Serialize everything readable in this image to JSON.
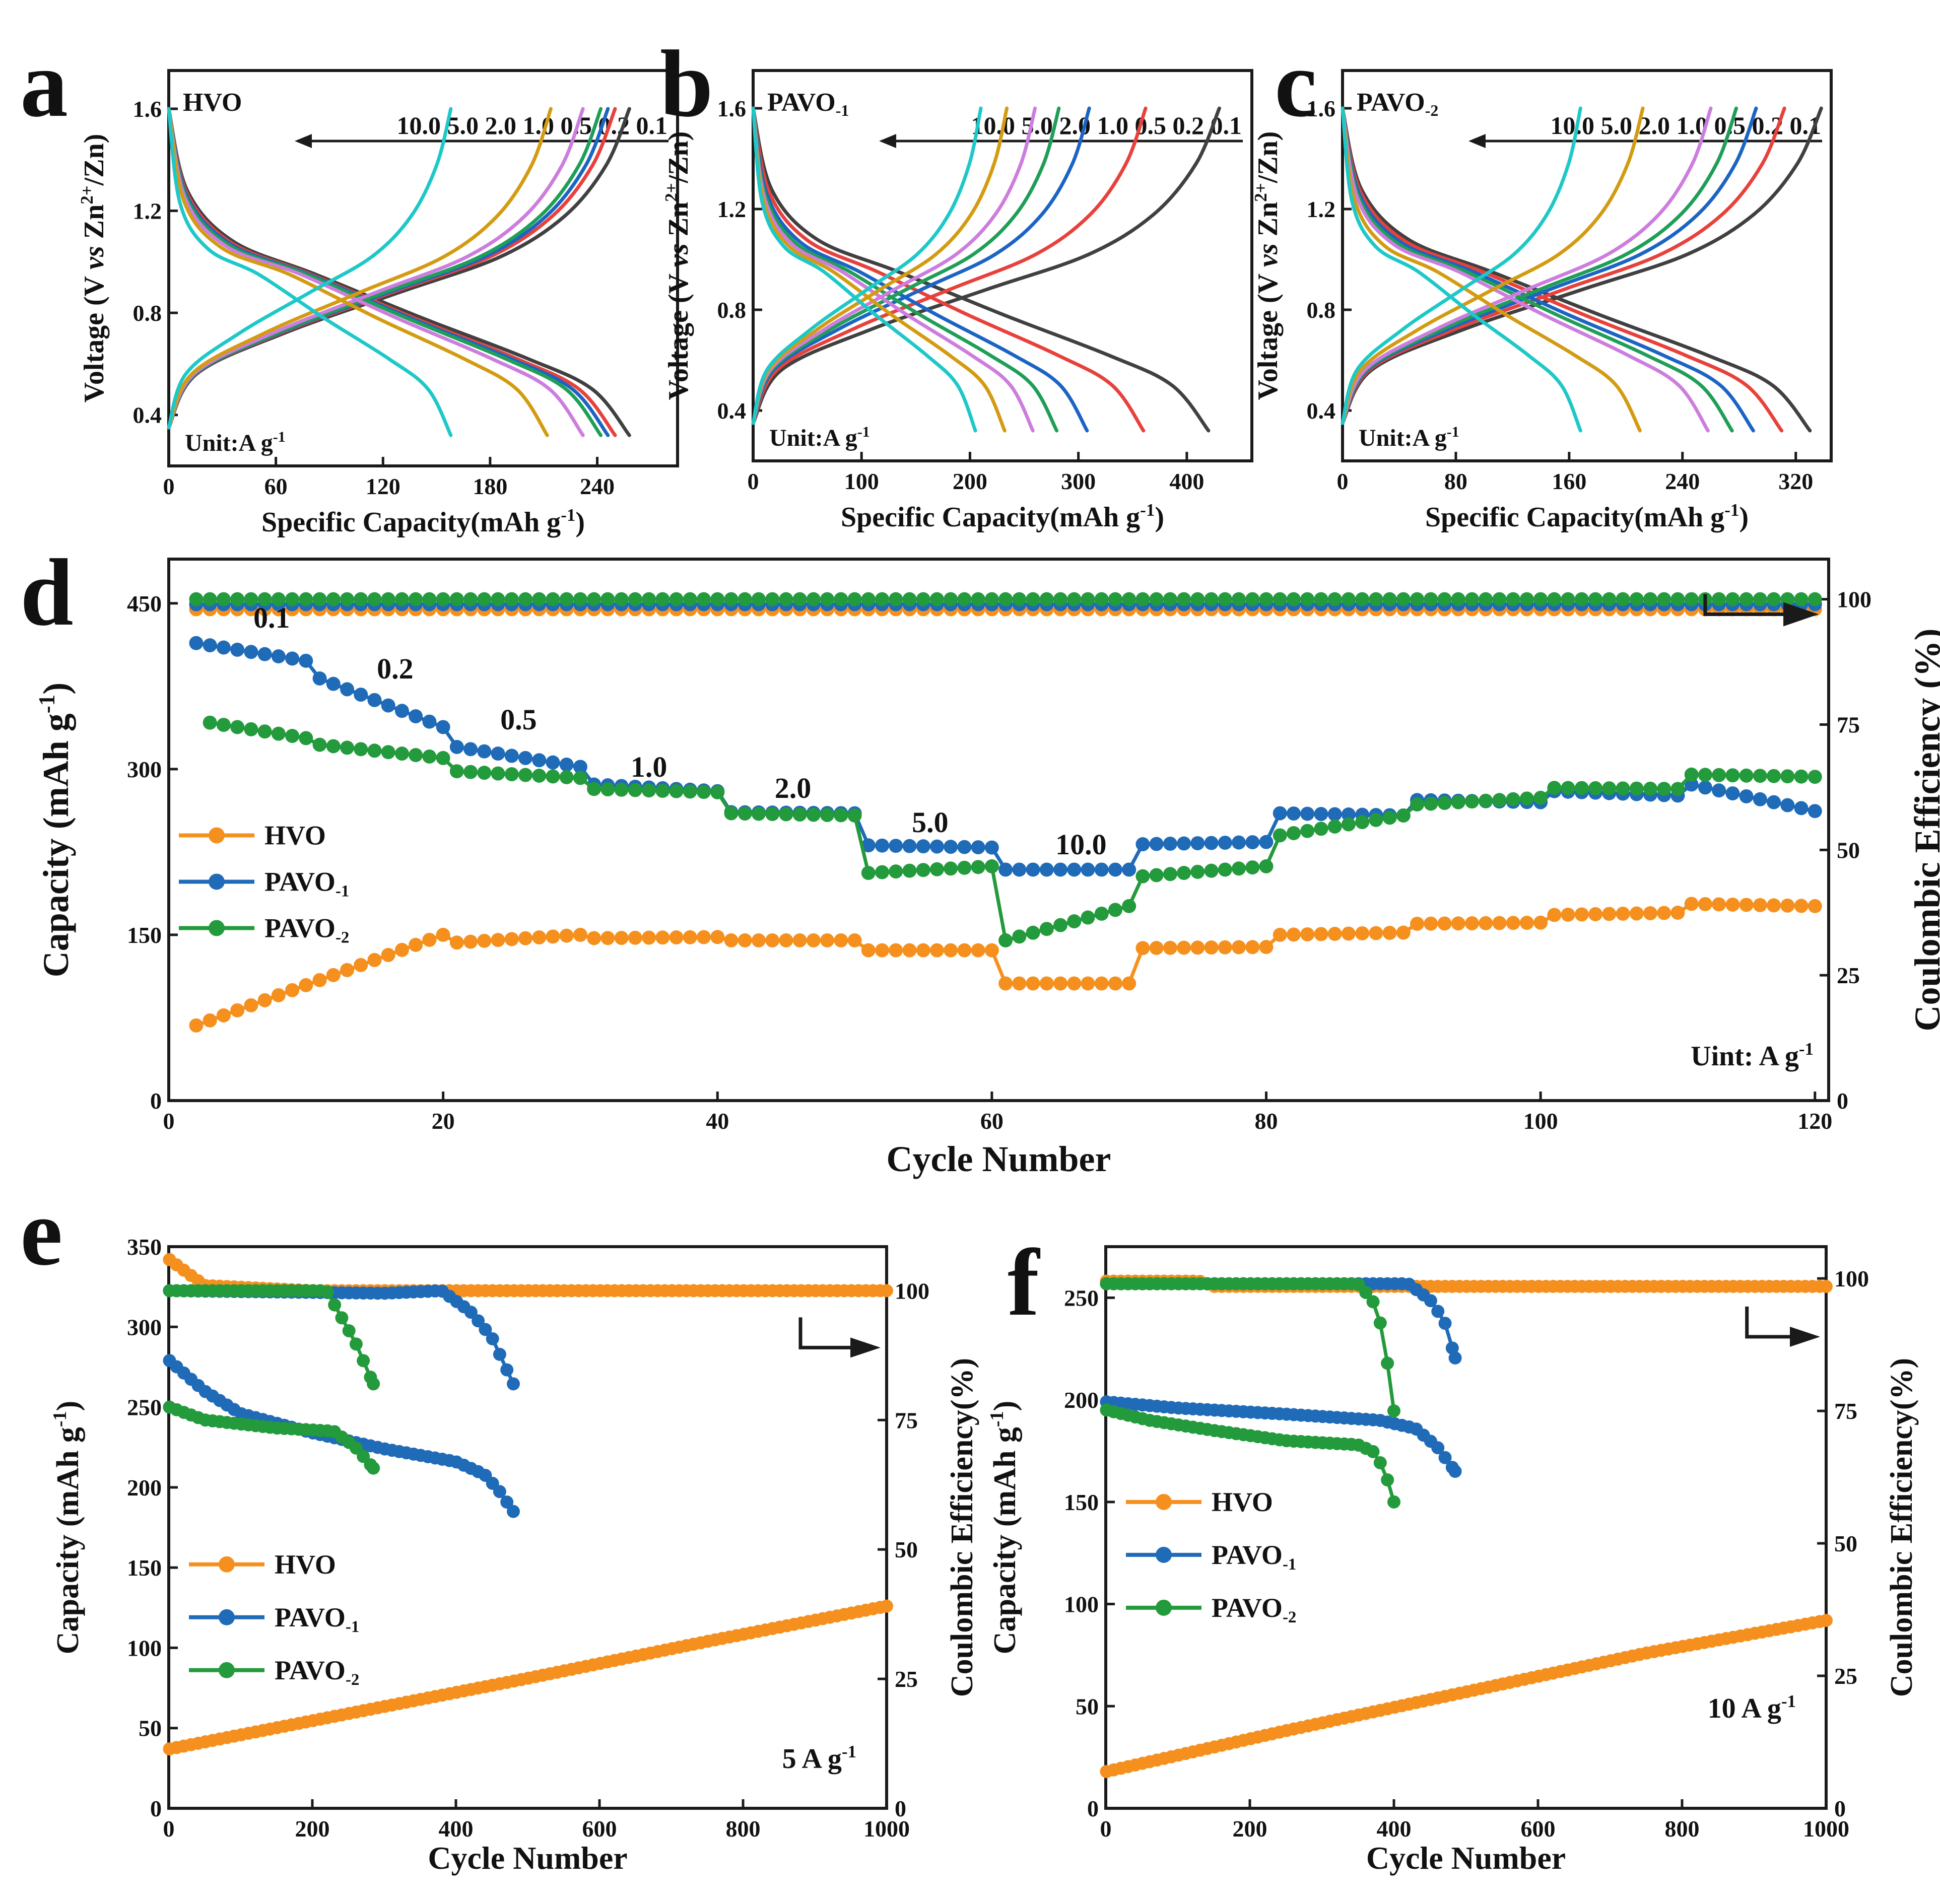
{
  "figure": {
    "colors": {
      "axis": "#1a1a1a",
      "HVO": "#f5901e",
      "PAVO_1": "#1f6bb8",
      "PAVO_2": "#239a3b",
      "rate_0.1": "#404040",
      "rate_0.2": "#e8413c",
      "rate_0.5": "#1c64c4",
      "rate_1.0": "#1f9e57",
      "rate_2.0": "#cc7ddd",
      "rate_5.0": "#d39b12",
      "rate_10.0": "#1ec8c8"
    }
  },
  "chart_data": [
    {
      "panel": "a",
      "type": "line",
      "title": "HVO",
      "xlabel": "Specific Capacity(mAh g-1)",
      "ylabel": "Voltage (V vs Zn2+/Zn)",
      "xlim": [
        0,
        285
      ],
      "ylim": [
        0.2,
        1.75
      ],
      "xticks": [
        "0",
        "60",
        "120",
        "180",
        "240"
      ],
      "xtick_values": [
        0,
        60,
        120,
        180,
        240
      ],
      "yticks": [
        "0.4",
        "0.8",
        "1.2",
        "1.6"
      ],
      "ytick_values": [
        0.4,
        0.8,
        1.2,
        1.6
      ],
      "arrow_label": "10.0 5.0 2.0 1.0 0.5 0.2 0.1",
      "unit_note": "Unit:A g-1",
      "series": [
        {
          "name": "0.1",
          "discharge_capacity": 258,
          "charge_capacity": 258
        },
        {
          "name": "0.2",
          "discharge_capacity": 250,
          "charge_capacity": 250
        },
        {
          "name": "0.5",
          "discharge_capacity": 246,
          "charge_capacity": 246
        },
        {
          "name": "1.0",
          "discharge_capacity": 242,
          "charge_capacity": 242
        },
        {
          "name": "2.0",
          "discharge_capacity": 232,
          "charge_capacity": 232
        },
        {
          "name": "5.0",
          "discharge_capacity": 212,
          "charge_capacity": 214
        },
        {
          "name": "10.0",
          "discharge_capacity": 158,
          "charge_capacity": 158
        }
      ]
    },
    {
      "panel": "b",
      "type": "line",
      "title": "PAVO-1",
      "xlabel": "Specific Capacity(mAh g-1)",
      "ylabel": "Voltage (V vs Zn2+/Zn)",
      "xlim": [
        0,
        460
      ],
      "ylim": [
        0.2,
        1.75
      ],
      "xticks": [
        "0",
        "100",
        "200",
        "300",
        "400"
      ],
      "xtick_values": [
        0,
        100,
        200,
        300,
        400
      ],
      "yticks": [
        "0.4",
        "0.8",
        "1.2",
        "1.6"
      ],
      "ytick_values": [
        0.4,
        0.8,
        1.2,
        1.6
      ],
      "arrow_label": "10.0 5.0 2.0 1.0 0.5 0.2 0.1",
      "unit_note": "Unit:A g-1",
      "series": [
        {
          "name": "0.1",
          "discharge_capacity": 420,
          "charge_capacity": 430
        },
        {
          "name": "0.2",
          "discharge_capacity": 360,
          "charge_capacity": 362
        },
        {
          "name": "0.5",
          "discharge_capacity": 308,
          "charge_capacity": 310
        },
        {
          "name": "1.0",
          "discharge_capacity": 280,
          "charge_capacity": 282
        },
        {
          "name": "2.0",
          "discharge_capacity": 258,
          "charge_capacity": 260
        },
        {
          "name": "5.0",
          "discharge_capacity": 232,
          "charge_capacity": 234
        },
        {
          "name": "10.0",
          "discharge_capacity": 205,
          "charge_capacity": 210
        }
      ]
    },
    {
      "panel": "c",
      "type": "line",
      "title": "PAVO-2",
      "xlabel": "Specific Capacity(mAh g-1)",
      "ylabel": "Voltage (V vs Zn2+/Zn)",
      "xlim": [
        0,
        345
      ],
      "ylim": [
        0.2,
        1.75
      ],
      "xticks": [
        "0",
        "80",
        "160",
        "240",
        "320"
      ],
      "xtick_values": [
        0,
        80,
        160,
        240,
        320
      ],
      "yticks": [
        "0.4",
        "0.8",
        "1.2",
        "1.6"
      ],
      "ytick_values": [
        0.4,
        0.8,
        1.2,
        1.6
      ],
      "arrow_label": "10.0 5.0 2.0 1.0 0.5 0.2 0.1",
      "unit_note": "Unit:A g-1",
      "series": [
        {
          "name": "0.1",
          "discharge_capacity": 330,
          "charge_capacity": 338
        },
        {
          "name": "0.2",
          "discharge_capacity": 310,
          "charge_capacity": 312
        },
        {
          "name": "0.5",
          "discharge_capacity": 290,
          "charge_capacity": 292
        },
        {
          "name": "1.0",
          "discharge_capacity": 275,
          "charge_capacity": 278
        },
        {
          "name": "2.0",
          "discharge_capacity": 258,
          "charge_capacity": 260
        },
        {
          "name": "5.0",
          "discharge_capacity": 210,
          "charge_capacity": 212
        },
        {
          "name": "10.0",
          "discharge_capacity": 168,
          "charge_capacity": 168
        }
      ]
    },
    {
      "panel": "d",
      "type": "scatter",
      "xlabel": "Cycle Number",
      "ylabel": "Capacity (mAh g-1)",
      "y2label": "Coulombic Efficiency (%)",
      "xlim": [
        0,
        121
      ],
      "ylim": [
        0,
        490
      ],
      "y2lim": [
        0,
        108
      ],
      "xticks": [
        "0",
        "20",
        "40",
        "60",
        "80",
        "100",
        "120"
      ],
      "xtick_values": [
        0,
        20,
        40,
        60,
        80,
        100,
        120
      ],
      "yticks": [
        "0",
        "150",
        "300",
        "450"
      ],
      "ytick_values": [
        0,
        150,
        300,
        450
      ],
      "y2ticks": [
        "0",
        "25",
        "50",
        "75",
        "100"
      ],
      "y2tick_values": [
        0,
        25,
        50,
        75,
        100
      ],
      "legend": [
        "HVO",
        "PAVO-1",
        "PAVO-2"
      ],
      "unit_note": "Uint: A g-1",
      "rate_labels": [
        {
          "text": "0.1",
          "x": 7.5,
          "y": 428
        },
        {
          "text": "0.2",
          "x": 16.5,
          "y": 382
        },
        {
          "text": "0.5",
          "x": 25.5,
          "y": 336
        },
        {
          "text": "1.0",
          "x": 35,
          "y": 293
        },
        {
          "text": "2.0",
          "x": 45.5,
          "y": 274
        },
        {
          "text": "5.0",
          "x": 55.5,
          "y": 243
        },
        {
          "text": "10.0",
          "x": 66.5,
          "y": 223
        }
      ],
      "series": [
        {
          "name": "HVO",
          "segments": [
            {
              "from": 2,
              "to": 20,
              "start": 68,
              "end": 150
            },
            {
              "from": 21,
              "to": 30,
              "start": 143,
              "end": 150
            },
            {
              "from": 31,
              "to": 40,
              "start": 147,
              "end": 148
            },
            {
              "from": 41,
              "to": 50,
              "start": 145,
              "end": 145
            },
            {
              "from": 51,
              "to": 60,
              "start": 136,
              "end": 136
            },
            {
              "from": 61,
              "to": 70,
              "start": 106,
              "end": 106
            },
            {
              "from": 71,
              "to": 80,
              "start": 138,
              "end": 139
            },
            {
              "from": 81,
              "to": 90,
              "start": 150,
              "end": 152
            },
            {
              "from": 91,
              "to": 100,
              "start": 160,
              "end": 161
            },
            {
              "from": 101,
              "to": 110,
              "start": 168,
              "end": 170
            },
            {
              "from": 111,
              "to": 120,
              "start": 178,
              "end": 176
            }
          ],
          "ce": 98
        },
        {
          "name": "PAVO-1",
          "segments": [
            {
              "from": 2,
              "to": 10,
              "start": 414,
              "end": 398
            },
            {
              "from": 11,
              "to": 20,
              "start": 382,
              "end": 338
            },
            {
              "from": 21,
              "to": 30,
              "start": 320,
              "end": 302
            },
            {
              "from": 31,
              "to": 40,
              "start": 286,
              "end": 280
            },
            {
              "from": 41,
              "to": 50,
              "start": 261,
              "end": 260
            },
            {
              "from": 51,
              "to": 60,
              "start": 231,
              "end": 229
            },
            {
              "from": 61,
              "to": 70,
              "start": 209,
              "end": 209
            },
            {
              "from": 71,
              "to": 80,
              "start": 232,
              "end": 234
            },
            {
              "from": 81,
              "to": 90,
              "start": 260,
              "end": 258
            },
            {
              "from": 91,
              "to": 100,
              "start": 272,
              "end": 270
            },
            {
              "from": 101,
              "to": 110,
              "start": 280,
              "end": 276
            },
            {
              "from": 111,
              "to": 120,
              "start": 286,
              "end": 262
            }
          ],
          "ce": 99
        },
        {
          "name": "PAVO-2",
          "segments": [
            {
              "from": 3,
              "to": 10,
              "start": 342,
              "end": 328
            },
            {
              "from": 11,
              "to": 20,
              "start": 322,
              "end": 310
            },
            {
              "from": 21,
              "to": 30,
              "start": 298,
              "end": 292
            },
            {
              "from": 31,
              "to": 40,
              "start": 282,
              "end": 279
            },
            {
              "from": 41,
              "to": 50,
              "start": 260,
              "end": 258
            },
            {
              "from": 51,
              "to": 60,
              "start": 206,
              "end": 212
            },
            {
              "from": 61,
              "to": 70,
              "start": 145,
              "end": 176
            },
            {
              "from": 71,
              "to": 80,
              "start": 203,
              "end": 212
            },
            {
              "from": 81,
              "to": 90,
              "start": 240,
              "end": 258
            },
            {
              "from": 91,
              "to": 100,
              "start": 268,
              "end": 274
            },
            {
              "from": 101,
              "to": 110,
              "start": 283,
              "end": 282
            },
            {
              "from": 111,
              "to": 120,
              "start": 295,
              "end": 293
            }
          ],
          "ce": 100
        }
      ]
    },
    {
      "panel": "e",
      "type": "scatter",
      "xlabel": "Cycle Number",
      "ylabel": "Capacity (mAh g-1)",
      "y2label": "Coulombic Efficiency(%)",
      "xlim": [
        0,
        1000
      ],
      "ylim": [
        0,
        350
      ],
      "y2lim": [
        0,
        108.5
      ],
      "xticks": [
        "0",
        "200",
        "400",
        "600",
        "800",
        "1000"
      ],
      "xtick_values": [
        0,
        200,
        400,
        600,
        800,
        1000
      ],
      "yticks": [
        "0",
        "50",
        "100",
        "150",
        "200",
        "250",
        "300",
        "350"
      ],
      "ytick_values": [
        0,
        50,
        100,
        150,
        200,
        250,
        300,
        350
      ],
      "y2ticks": [
        "0",
        "25",
        "50",
        "75",
        "100"
      ],
      "y2tick_values": [
        0,
        25,
        50,
        75,
        100
      ],
      "legend": [
        "HVO",
        "PAVO-1",
        "PAVO-2"
      ],
      "unit_note": "5 A g-1",
      "series": [
        {
          "name": "HVO",
          "capacity_points": [
            [
              1,
              37
            ],
            [
              250,
              59
            ],
            [
              500,
              81
            ],
            [
              750,
              104
            ],
            [
              1000,
              126
            ]
          ],
          "ce_points": [
            [
              1,
              106
            ],
            [
              50,
              101
            ],
            [
              200,
              100
            ],
            [
              1000,
              100
            ]
          ]
        },
        {
          "name": "PAVO-1",
          "capacity_points": [
            [
              1,
              279
            ],
            [
              50,
              260
            ],
            [
              100,
              246
            ],
            [
              200,
              234
            ],
            [
              300,
              224
            ],
            [
              400,
              216
            ],
            [
              440,
              208
            ],
            [
              460,
              198
            ],
            [
              480,
              185
            ]
          ],
          "ce_points": [
            [
              1,
              100
            ],
            [
              300,
              99.5
            ],
            [
              380,
              100
            ],
            [
              420,
              96
            ],
            [
              450,
              91
            ],
            [
              480,
              82
            ]
          ]
        },
        {
          "name": "PAVO-2",
          "capacity_points": [
            [
              1,
              250
            ],
            [
              50,
              242
            ],
            [
              150,
              237
            ],
            [
              230,
              235
            ],
            [
              260,
              225
            ],
            [
              285,
              212
            ]
          ],
          "ce_points": [
            [
              1,
              100
            ],
            [
              220,
              100
            ],
            [
              240,
              95
            ],
            [
              260,
              90
            ],
            [
              285,
              82
            ]
          ]
        }
      ]
    },
    {
      "panel": "f",
      "type": "scatter",
      "xlabel": "Cycle Number",
      "ylabel": "Capacity (mAh g-1)",
      "y2label": "Coulombic Efficiency(%)",
      "xlim": [
        0,
        1000
      ],
      "ylim": [
        0,
        275
      ],
      "y2lim": [
        0,
        106
      ],
      "xticks": [
        "0",
        "200",
        "400",
        "600",
        "800",
        "1000"
      ],
      "xtick_values": [
        0,
        200,
        400,
        600,
        800,
        1000
      ],
      "yticks": [
        "0",
        "50",
        "100",
        "150",
        "200",
        "250"
      ],
      "ytick_values": [
        0,
        50,
        100,
        150,
        200,
        250
      ],
      "y2ticks": [
        "0",
        "25",
        "50",
        "75",
        "100"
      ],
      "y2tick_values": [
        0,
        25,
        50,
        75,
        100
      ],
      "legend": [
        "HVO",
        "PAVO-1",
        "PAVO-2"
      ],
      "unit_note": "10 A g-1",
      "series": [
        {
          "name": "HVO",
          "capacity_points": [
            [
              1,
              18
            ],
            [
              250,
              38
            ],
            [
              500,
              57
            ],
            [
              750,
              76
            ],
            [
              1000,
              92
            ]
          ],
          "ce_points": [
            [
              1,
              99.5
            ],
            [
              130,
              99.5
            ],
            [
              150,
              98.5
            ],
            [
              1000,
              98.5
            ]
          ]
        },
        {
          "name": "PAVO-1",
          "capacity_points": [
            [
              1,
              199
            ],
            [
              100,
              196
            ],
            [
              250,
              193
            ],
            [
              380,
              190
            ],
            [
              430,
              186
            ],
            [
              460,
              177
            ],
            [
              485,
              165
            ]
          ],
          "ce_points": [
            [
              1,
              99
            ],
            [
              420,
              99
            ],
            [
              450,
              96
            ],
            [
              470,
              92
            ],
            [
              485,
              85
            ]
          ]
        },
        {
          "name": "PAVO-2",
          "capacity_points": [
            [
              1,
              195
            ],
            [
              60,
              190
            ],
            [
              150,
              185
            ],
            [
              250,
              180
            ],
            [
              350,
              178
            ],
            [
              375,
              174
            ],
            [
              390,
              162
            ],
            [
              400,
              150
            ]
          ],
          "ce_points": [
            [
              1,
              99
            ],
            [
              350,
              99
            ],
            [
              370,
              96
            ],
            [
              385,
              90
            ],
            [
              400,
              75
            ]
          ]
        }
      ]
    }
  ]
}
